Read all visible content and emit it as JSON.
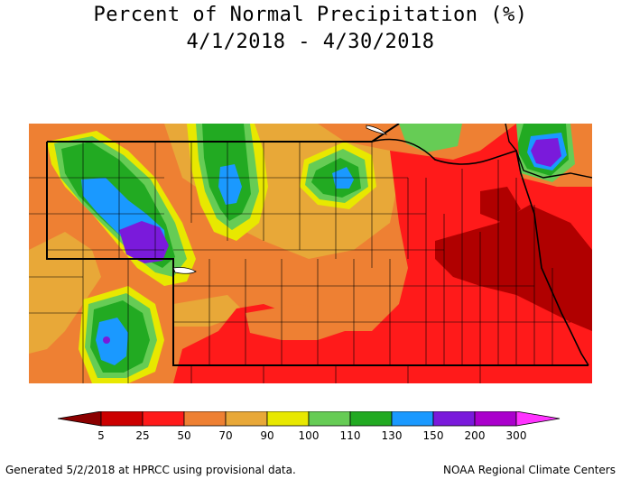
{
  "title": {
    "line1": "Percent of Normal Precipitation (%)",
    "line2": "4/1/2018 - 4/30/2018"
  },
  "legend": {
    "ticks": [
      "5",
      "25",
      "50",
      "70",
      "90",
      "100",
      "110",
      "130",
      "150",
      "200",
      "300"
    ],
    "colors": [
      "#8b0000",
      "#cc0000",
      "#ff1a1a",
      "#ee8033",
      "#e8a838",
      "#e8e800",
      "#66cc55",
      "#22aa22",
      "#1a99ff",
      "#7a1adb",
      "#aa00cc",
      "#ff33ff"
    ]
  },
  "map": {
    "region": "Nebraska",
    "palette": {
      "dark_red": "#b00000",
      "red": "#ff1a1a",
      "orange": "#ee8033",
      "light_orange": "#e8a838",
      "yellow": "#e8e800",
      "light_green": "#66cc55",
      "green": "#22aa22",
      "blue": "#1a99ff",
      "purple": "#7a1adb"
    }
  },
  "footer": {
    "left": "Generated 5/2/2018 at HPRCC using provisional data.",
    "right": "NOAA Regional Climate Centers"
  }
}
